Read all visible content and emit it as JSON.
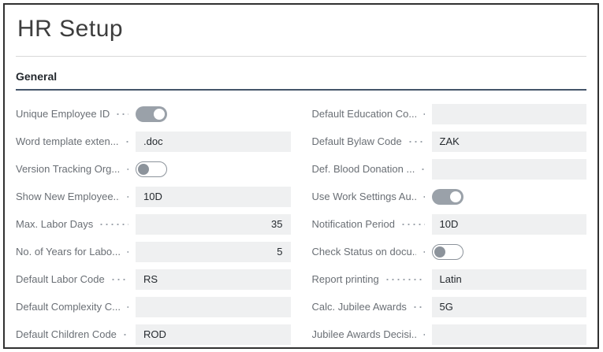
{
  "page": {
    "title": "HR Setup",
    "section_label": "General"
  },
  "colors": {
    "frame_border": "#313131",
    "section_underline": "#44546a",
    "field_background": "#eff0f1",
    "label_text": "#6a6f75",
    "value_text": "#24292e",
    "toggle_on_track": "#9aa1a9",
    "toggle_off_border": "#8c939b"
  },
  "fields": {
    "left": [
      {
        "label": "Unique Employee ID",
        "type": "toggle",
        "value": true,
        "name": "unique-employee-id-toggle"
      },
      {
        "label": "Word template exten...",
        "type": "text",
        "value": ".doc",
        "name": "word-template-extension-field"
      },
      {
        "label": "Version Tracking Org...",
        "type": "toggle",
        "value": false,
        "name": "version-tracking-org-toggle"
      },
      {
        "label": "Show New Employee...",
        "type": "text",
        "value": "10D",
        "name": "show-new-employee-field"
      },
      {
        "label": "Max. Labor Days",
        "type": "number",
        "value": "35",
        "name": "max-labor-days-field"
      },
      {
        "label": "No. of Years for Labo...",
        "type": "number",
        "value": "5",
        "name": "no-of-years-for-labor-field"
      },
      {
        "label": "Default Labor Code",
        "type": "text",
        "value": "RS",
        "name": "default-labor-code-field"
      },
      {
        "label": "Default Complexity C...",
        "type": "text",
        "value": "",
        "name": "default-complexity-code-field"
      },
      {
        "label": "Default Children Code",
        "type": "text",
        "value": "ROD",
        "name": "default-children-code-field"
      }
    ],
    "right": [
      {
        "label": "Default Education Co...",
        "type": "text",
        "value": "",
        "name": "default-education-code-field"
      },
      {
        "label": "Default Bylaw Code",
        "type": "text",
        "value": "ZAK",
        "name": "default-bylaw-code-field"
      },
      {
        "label": "Def. Blood Donation ...",
        "type": "text",
        "value": "",
        "name": "def-blood-donation-field"
      },
      {
        "label": "Use Work Settings Au...",
        "type": "toggle",
        "value": true,
        "name": "use-work-settings-toggle"
      },
      {
        "label": "Notification Period",
        "type": "text",
        "value": "10D",
        "name": "notification-period-field"
      },
      {
        "label": "Check Status on docu...",
        "type": "toggle",
        "value": false,
        "name": "check-status-on-documents-toggle"
      },
      {
        "label": "Report printing",
        "type": "text",
        "value": "Latin",
        "name": "report-printing-field"
      },
      {
        "label": "Calc. Jubilee Awards",
        "type": "text",
        "value": "5G",
        "name": "calc-jubilee-awards-field"
      },
      {
        "label": "Jubilee Awards Decisi...",
        "type": "text",
        "value": "",
        "name": "jubilee-awards-decision-field"
      }
    ]
  }
}
